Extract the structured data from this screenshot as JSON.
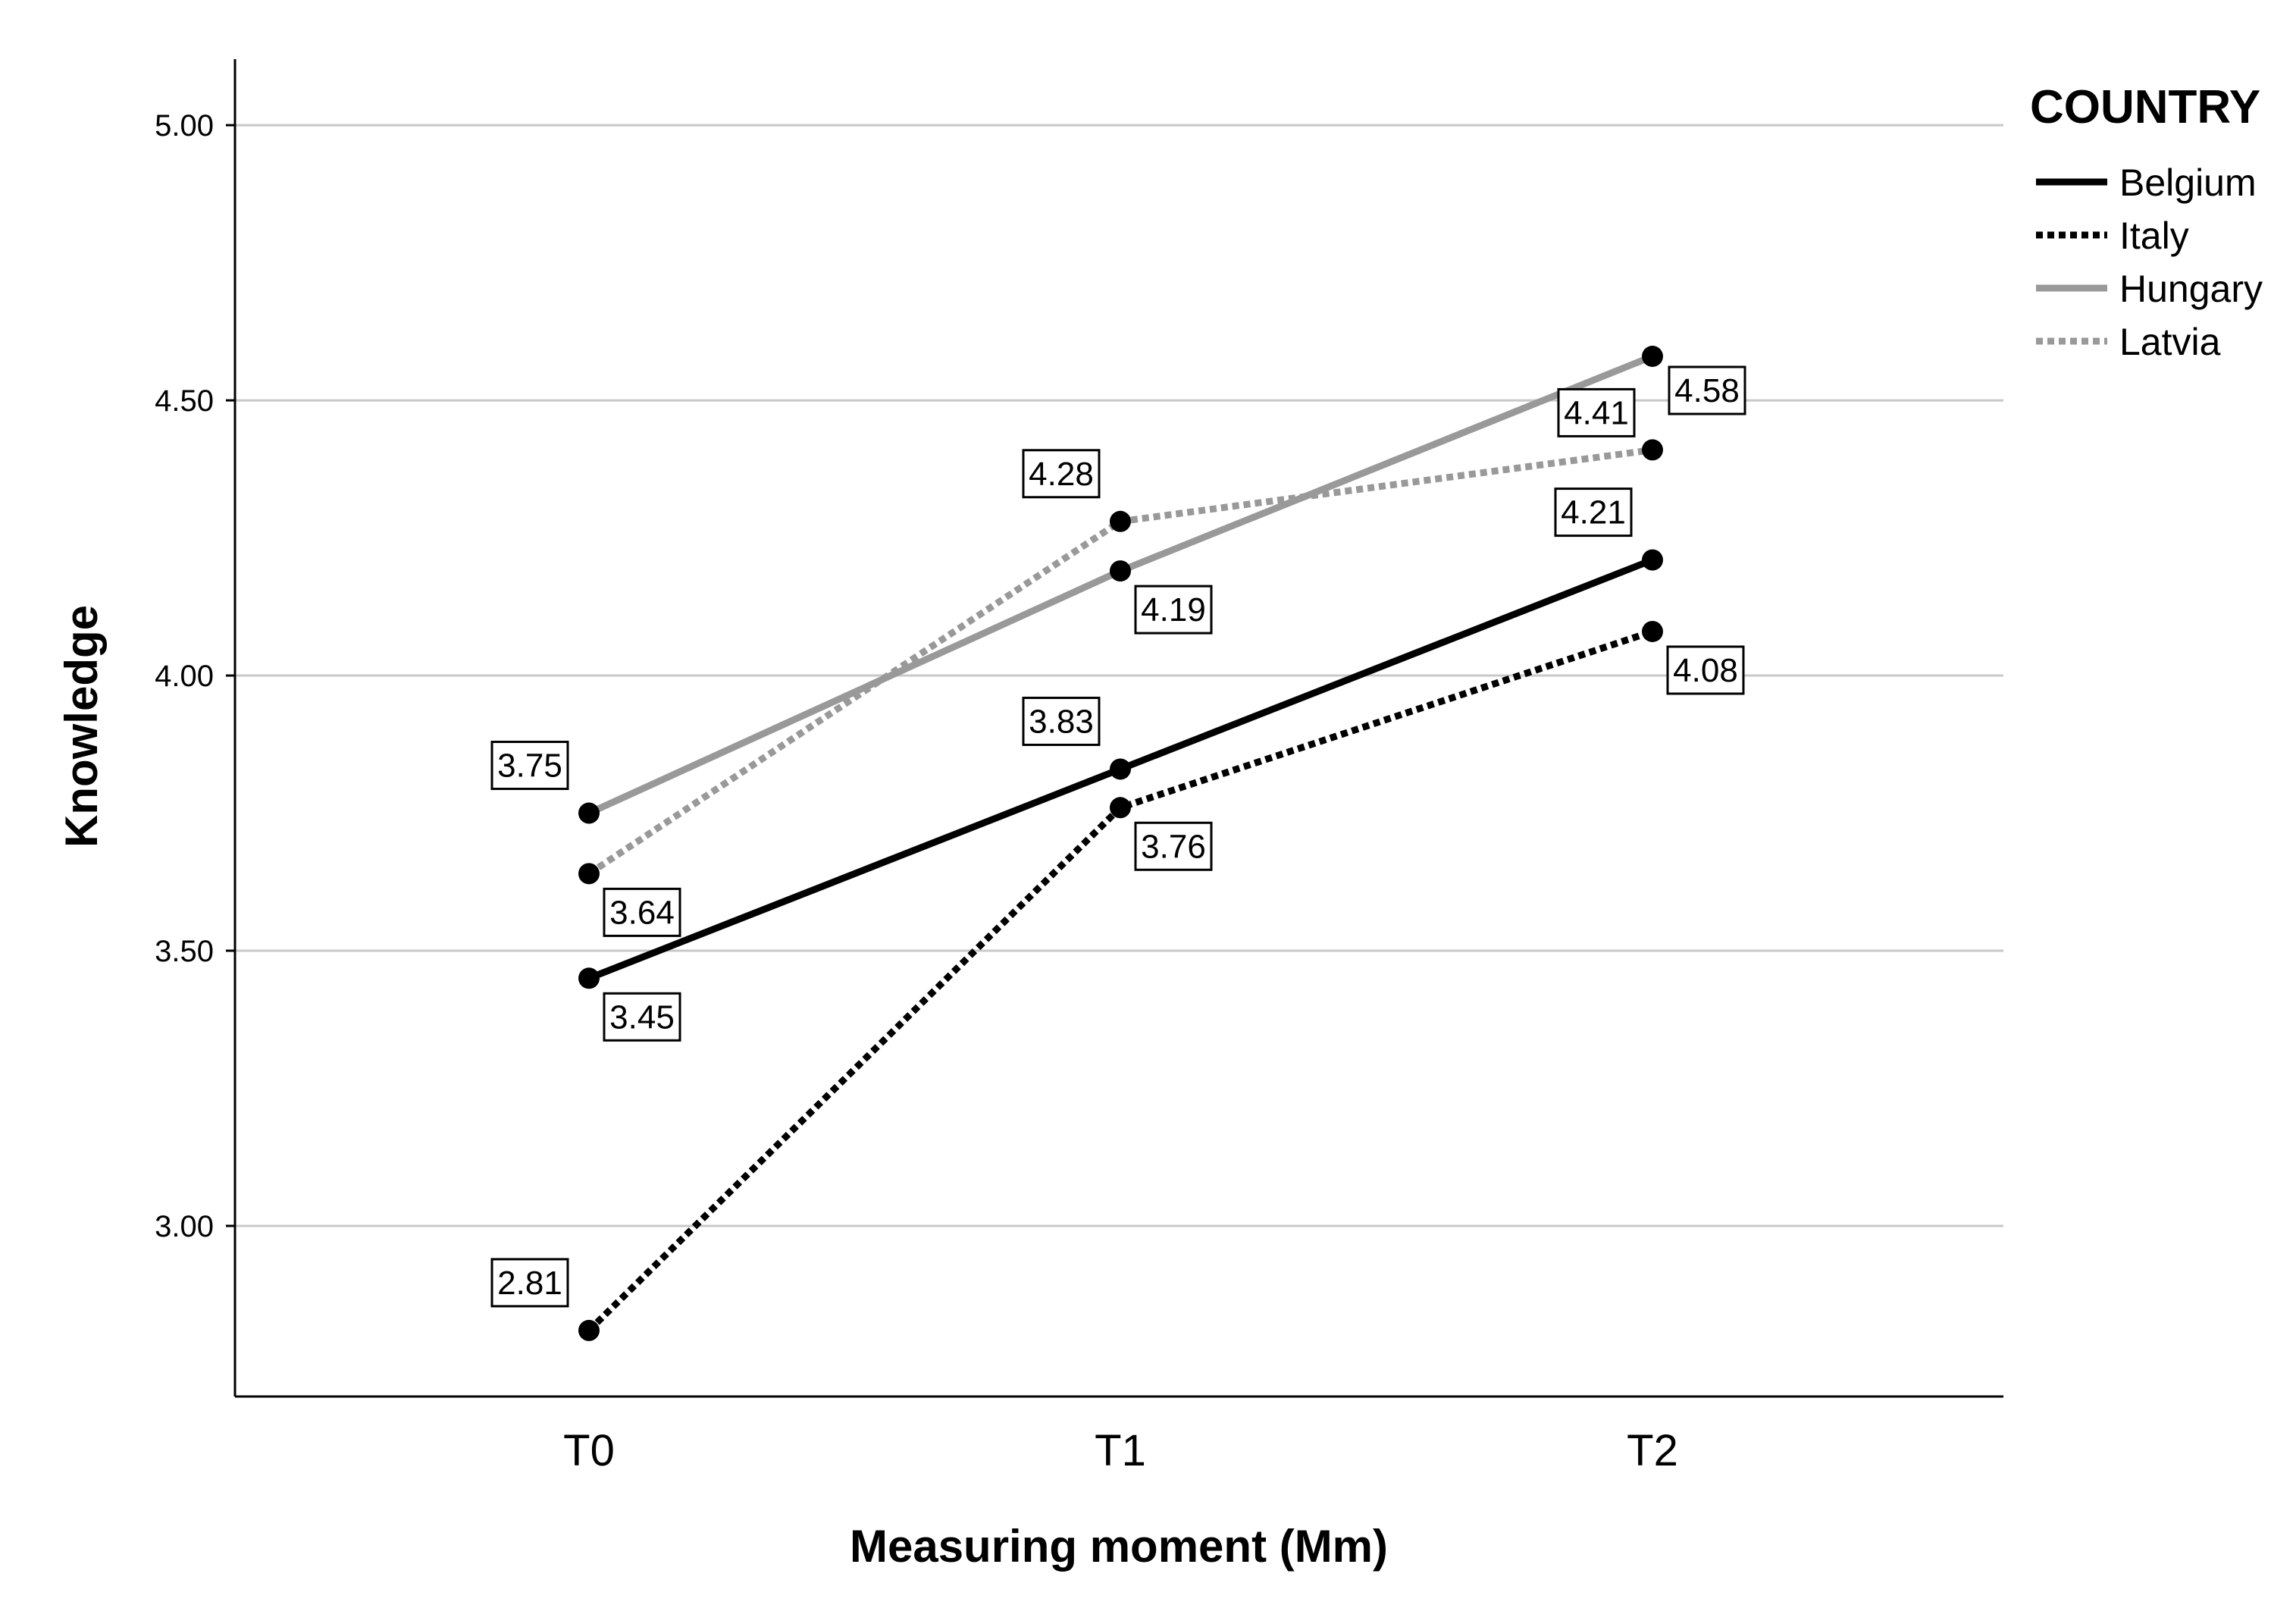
{
  "chart_data": {
    "type": "line",
    "xlabel": "Measuring moment (Mm)",
    "ylabel": "Knowledge",
    "categories": [
      "T0",
      "T1",
      "T2"
    ],
    "ylim": [
      2.69,
      5.12
    ],
    "yticks": [
      3.0,
      3.5,
      4.0,
      4.5,
      5.0
    ],
    "ytick_labels": [
      "3.00",
      "3.50",
      "4.00",
      "4.50",
      "5.00"
    ],
    "grid": "horizontal",
    "legend": {
      "title": "COUNTRY",
      "placement": "top-right, outside plot"
    },
    "series": [
      {
        "name": "Belgium",
        "values": [
          3.45,
          3.83,
          4.21
        ],
        "labels": [
          "3.45",
          "3.83",
          "4.21"
        ],
        "color": "#000000",
        "style": "solid"
      },
      {
        "name": "Italy",
        "values": [
          2.81,
          3.76,
          4.08
        ],
        "labels": [
          "2.81",
          "3.76",
          "4.08"
        ],
        "color": "#000000",
        "style": "dotted"
      },
      {
        "name": "Hungary",
        "values": [
          3.75,
          4.19,
          4.58
        ],
        "labels": [
          "3.75",
          "4.19",
          "4.58"
        ],
        "color": "#999999",
        "style": "solid"
      },
      {
        "name": "Latvia",
        "values": [
          3.64,
          4.28,
          4.41
        ],
        "labels": [
          "3.64",
          "4.28",
          "4.41"
        ],
        "color": "#999999",
        "style": "dotted"
      }
    ]
  }
}
